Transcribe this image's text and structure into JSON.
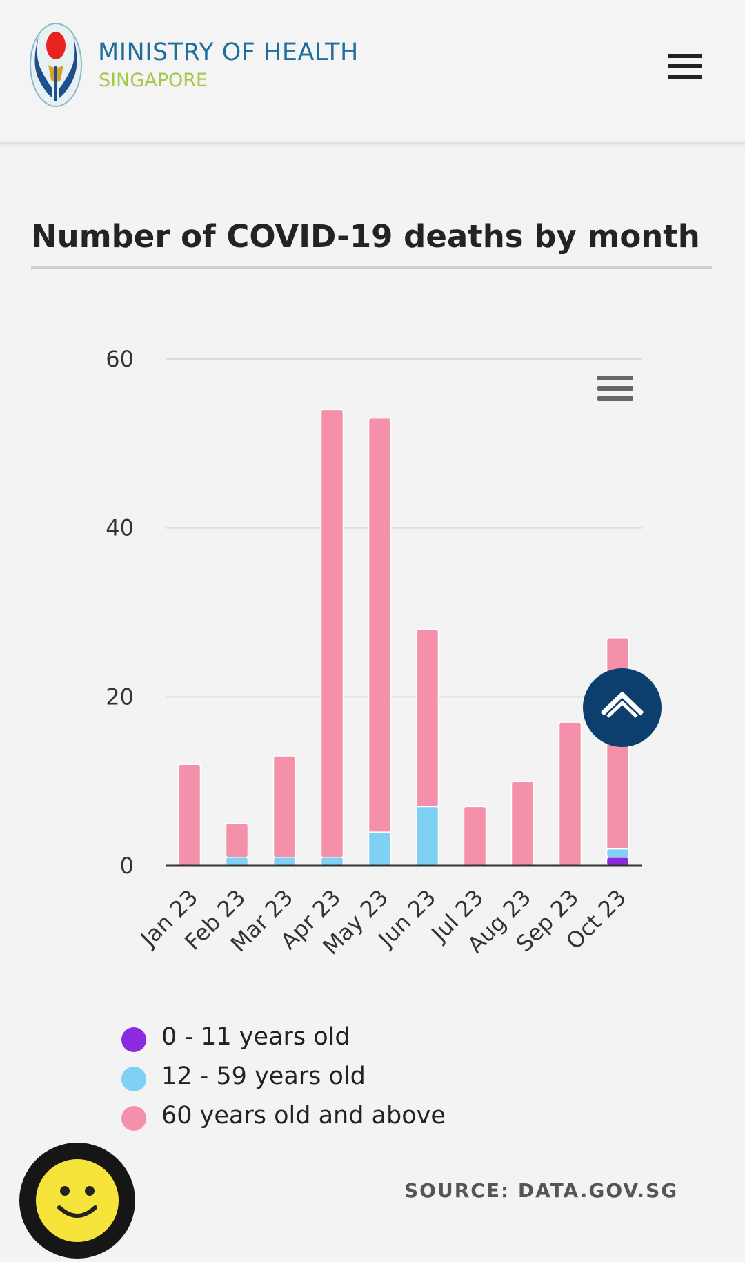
{
  "header": {
    "brand_line1": "MINISTRY OF HEALTH",
    "brand_line2": "SINGAPORE",
    "menu_icon": "hamburger-menu-icon"
  },
  "colors": {
    "brand_blue": "#1f6f9d",
    "brand_green": "#a6c84a",
    "age_0_11": "#8a2be2",
    "age_12_59": "#7fd0f5",
    "age_60_plus": "#f490aa",
    "scroll_button": "#0d3f6e"
  },
  "legend": {
    "items": [
      {
        "label": "0 - 11 years old",
        "color": "#8a2be2"
      },
      {
        "label": "12 - 59 years old",
        "color": "#7fd0f5"
      },
      {
        "label": "60 years old and above",
        "color": "#f490aa"
      }
    ]
  },
  "source": "SOURCE: DATA.GOV.SG",
  "chart_data": {
    "type": "bar",
    "stacked": true,
    "title": "Number of COVID-19 deaths by month",
    "categories": [
      "Jan 23",
      "Feb 23",
      "Mar 23",
      "Apr 23",
      "May 23",
      "Jun 23",
      "Jul 23",
      "Aug 23",
      "Sep 23",
      "Oct 23"
    ],
    "series": [
      {
        "name": "0 - 11 years old",
        "color": "#8a2be2",
        "values": [
          0,
          0,
          0,
          0,
          0,
          0,
          0,
          0,
          0,
          1
        ]
      },
      {
        "name": "12 - 59 years old",
        "color": "#7fd0f5",
        "values": [
          0,
          1,
          1,
          1,
          4,
          7,
          0,
          0,
          0,
          1
        ]
      },
      {
        "name": "60 years old and above",
        "color": "#f490aa",
        "values": [
          12,
          4,
          12,
          53,
          49,
          21,
          7,
          10,
          17,
          25
        ]
      }
    ],
    "ylim": [
      0,
      60
    ],
    "yticks": [
      0,
      20,
      40,
      60
    ],
    "grid": true,
    "legend_position": "bottom"
  }
}
